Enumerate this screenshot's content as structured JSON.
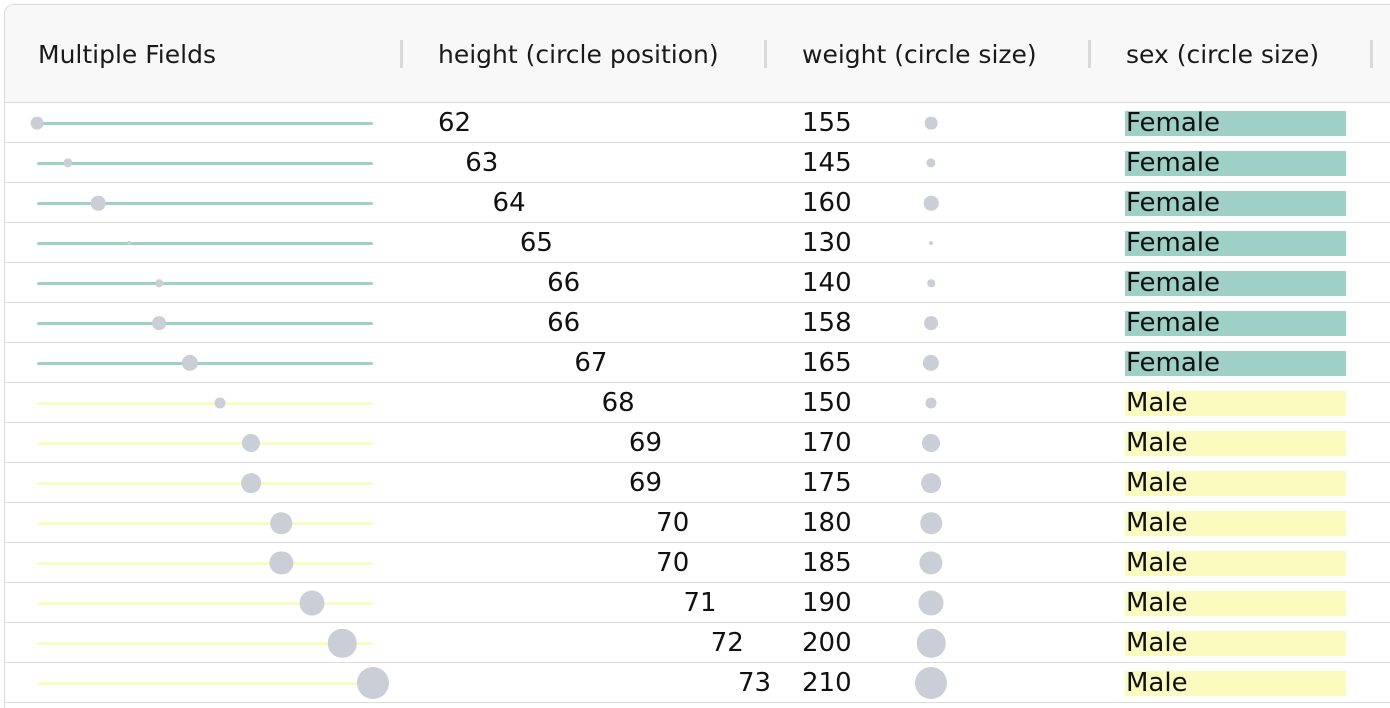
{
  "columns": [
    {
      "label": "Multiple Fields"
    },
    {
      "label": "height (circle position)"
    },
    {
      "label": "weight (circle size)"
    },
    {
      "label": "sex (circle size)"
    }
  ],
  "colors": {
    "female": "#9fd0c7",
    "male": "#fcfbbf",
    "circle": "#c9ced7"
  },
  "height_scale": {
    "min": 62,
    "max": 73
  },
  "weight_scale": {
    "min": 130,
    "max": 210
  },
  "rows": [
    {
      "height": "62",
      "weight": "155",
      "sex": "Female"
    },
    {
      "height": "63",
      "weight": "145",
      "sex": "Female"
    },
    {
      "height": "64",
      "weight": "160",
      "sex": "Female"
    },
    {
      "height": "65",
      "weight": "130",
      "sex": "Female"
    },
    {
      "height": "66",
      "weight": "140",
      "sex": "Female"
    },
    {
      "height": "66",
      "weight": "158",
      "sex": "Female"
    },
    {
      "height": "67",
      "weight": "165",
      "sex": "Female"
    },
    {
      "height": "68",
      "weight": "150",
      "sex": "Male"
    },
    {
      "height": "69",
      "weight": "170",
      "sex": "Male"
    },
    {
      "height": "69",
      "weight": "175",
      "sex": "Male"
    },
    {
      "height": "70",
      "weight": "180",
      "sex": "Male"
    },
    {
      "height": "70",
      "weight": "185",
      "sex": "Male"
    },
    {
      "height": "71",
      "weight": "190",
      "sex": "Male"
    },
    {
      "height": "72",
      "weight": "200",
      "sex": "Male"
    },
    {
      "height": "73",
      "weight": "210",
      "sex": "Male"
    }
  ]
}
